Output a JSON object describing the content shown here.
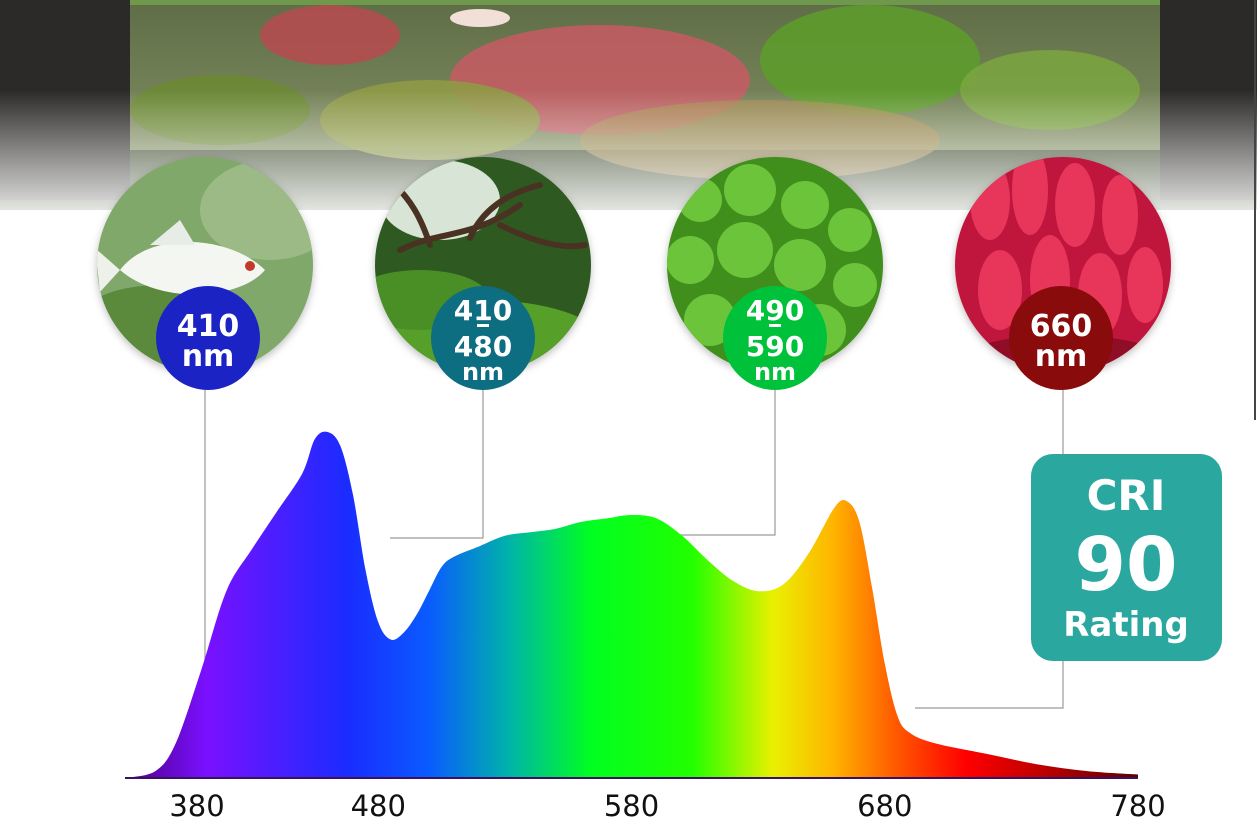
{
  "chart_data": {
    "type": "area",
    "x_ticks": [
      380,
      480,
      580,
      680,
      780
    ],
    "xlim": [
      380,
      780
    ],
    "ylim": [
      0,
      1
    ],
    "grid": false,
    "x": [
      380,
      392,
      400,
      410,
      420,
      430,
      440,
      450,
      455,
      460,
      465,
      470,
      475,
      480,
      485,
      490,
      495,
      500,
      505,
      510,
      520,
      530,
      540,
      550,
      560,
      570,
      580,
      590,
      600,
      610,
      620,
      630,
      640,
      650,
      660,
      665,
      670,
      675,
      680,
      685,
      690,
      700,
      720,
      740,
      760,
      780
    ],
    "y": [
      0,
      0.02,
      0.1,
      0.31,
      0.54,
      0.66,
      0.77,
      0.88,
      0.98,
      1.0,
      0.96,
      0.82,
      0.6,
      0.45,
      0.4,
      0.42,
      0.47,
      0.54,
      0.61,
      0.64,
      0.67,
      0.7,
      0.71,
      0.72,
      0.74,
      0.75,
      0.76,
      0.75,
      0.7,
      0.63,
      0.57,
      0.54,
      0.56,
      0.65,
      0.78,
      0.8,
      0.74,
      0.55,
      0.33,
      0.18,
      0.13,
      0.1,
      0.07,
      0.04,
      0.02,
      0.01
    ],
    "gradient": [
      {
        "offset": 0.0,
        "color": "#4b0082"
      },
      {
        "offset": 0.08,
        "color": "#7a10ff"
      },
      {
        "offset": 0.22,
        "color": "#1a2cff"
      },
      {
        "offset": 0.3,
        "color": "#0a5bff"
      },
      {
        "offset": 0.38,
        "color": "#00b4a8"
      },
      {
        "offset": 0.46,
        "color": "#00ff20"
      },
      {
        "offset": 0.56,
        "color": "#22ff00"
      },
      {
        "offset": 0.64,
        "color": "#eaf000"
      },
      {
        "offset": 0.7,
        "color": "#ffb300"
      },
      {
        "offset": 0.76,
        "color": "#ff5a00"
      },
      {
        "offset": 0.83,
        "color": "#ff0000"
      },
      {
        "offset": 0.92,
        "color": "#b00000"
      },
      {
        "offset": 1.0,
        "color": "#5a0000"
      }
    ],
    "annotations": [
      {
        "lines": [
          "410",
          "nm"
        ],
        "color": "#1b23c4",
        "x": 410,
        "photo": "fish-photo"
      },
      {
        "lines": [
          "410",
          "480",
          "nm"
        ],
        "color": "#0d6e82",
        "x": 485,
        "photo": "driftwood-photo"
      },
      {
        "lines": [
          "490",
          "590",
          "nm"
        ],
        "color": "#00c23a",
        "x": 575,
        "photo": "moss-photo"
      },
      {
        "lines": [
          "660",
          "nm"
        ],
        "color": "#8a0b0b",
        "x": 720,
        "photo": "red-plant-photo"
      }
    ]
  },
  "cri_badge": {
    "line1": "CRI",
    "line2": "90",
    "line3": "Rating",
    "color": "#2aa79f"
  }
}
